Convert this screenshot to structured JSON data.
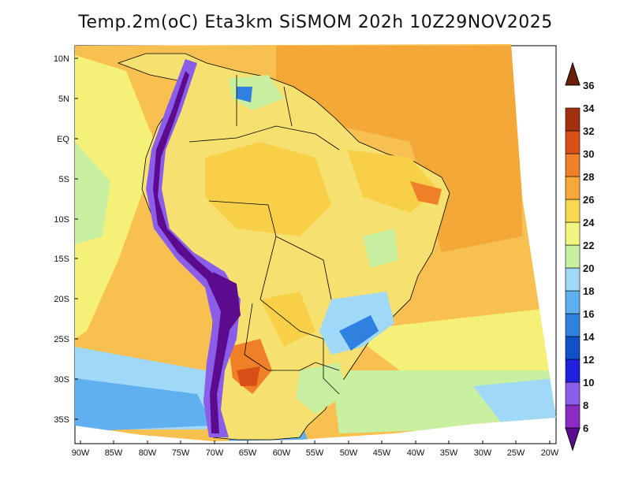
{
  "title": "Temp.2m(oC) Eta3km SiSMOM 202h 10Z29NOV2025",
  "map": {
    "variable": "2 m air temperature",
    "units": "oC",
    "lat_labels": [
      "10N",
      "5N",
      "EQ",
      "5S",
      "10S",
      "15S",
      "20S",
      "25S",
      "30S",
      "35S"
    ],
    "lon_labels": [
      "90W",
      "85W",
      "80W",
      "75W",
      "70W",
      "65W",
      "60W",
      "55W",
      "50W",
      "45W",
      "40W",
      "35W",
      "30W",
      "25W",
      "20W"
    ]
  },
  "colorbar": {
    "levels": [
      "6",
      "8",
      "10",
      "12",
      "14",
      "16",
      "18",
      "20",
      "22",
      "24",
      "26",
      "28",
      "30",
      "32",
      "34",
      "36"
    ],
    "colors": [
      "#5c0a8e",
      "#8a2bc4",
      "#8a5ee8",
      "#2020e0",
      "#1050c8",
      "#3080e0",
      "#60b0f0",
      "#a0d8f8",
      "#c8f0a0",
      "#f4f480",
      "#f8d850",
      "#f8a838",
      "#f08028",
      "#d85018",
      "#a03010",
      "#6a2008"
    ]
  }
}
